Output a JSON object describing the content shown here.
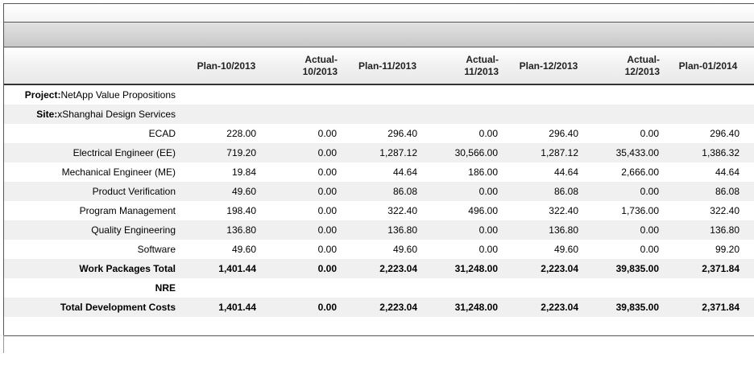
{
  "columns": [
    {
      "lines": [
        "Plan-10/2013"
      ]
    },
    {
      "lines": [
        "Actual-",
        "10/2013"
      ]
    },
    {
      "lines": [
        "Plan-11/2013"
      ]
    },
    {
      "lines": [
        "Actual-",
        "11/2013"
      ]
    },
    {
      "lines": [
        "Plan-12/2013"
      ]
    },
    {
      "lines": [
        "Actual-",
        "12/2013"
      ]
    },
    {
      "lines": [
        "Plan-01/2014"
      ]
    }
  ],
  "project": {
    "prefix": "Project:",
    "value": "NetApp Value Propositions"
  },
  "site": {
    "prefix": "Site:",
    "value": "xShanghai Design Services"
  },
  "rows": [
    {
      "label": "ECAD",
      "values": [
        "228.00",
        "0.00",
        "296.40",
        "0.00",
        "296.40",
        "0.00",
        "296.40"
      ]
    },
    {
      "label": "Electrical Engineer (EE)",
      "values": [
        "719.20",
        "0.00",
        "1,287.12",
        "30,566.00",
        "1,287.12",
        "35,433.00",
        "1,386.32"
      ]
    },
    {
      "label": "Mechanical Engineer (ME)",
      "values": [
        "19.84",
        "0.00",
        "44.64",
        "186.00",
        "44.64",
        "2,666.00",
        "44.64"
      ]
    },
    {
      "label": "Product Verification",
      "values": [
        "49.60",
        "0.00",
        "86.08",
        "0.00",
        "86.08",
        "0.00",
        "86.08"
      ]
    },
    {
      "label": "Program Management",
      "values": [
        "198.40",
        "0.00",
        "322.40",
        "496.00",
        "322.40",
        "1,736.00",
        "322.40"
      ]
    },
    {
      "label": "Quality Engineering",
      "values": [
        "136.80",
        "0.00",
        "136.80",
        "0.00",
        "136.80",
        "0.00",
        "136.80"
      ]
    },
    {
      "label": "Software",
      "values": [
        "49.60",
        "0.00",
        "49.60",
        "0.00",
        "49.60",
        "0.00",
        "99.20"
      ]
    }
  ],
  "work_packages_total": {
    "label": "Work Packages Total",
    "values": [
      "1,401.44",
      "0.00",
      "2,223.04",
      "31,248.00",
      "2,223.04",
      "39,835.00",
      "2,371.84"
    ]
  },
  "nre": {
    "label": "NRE"
  },
  "total_development_costs": {
    "label": "Total Development Costs",
    "values": [
      "1,401.44",
      "0.00",
      "2,223.04",
      "31,248.00",
      "2,223.04",
      "39,835.00",
      "2,371.84"
    ]
  }
}
